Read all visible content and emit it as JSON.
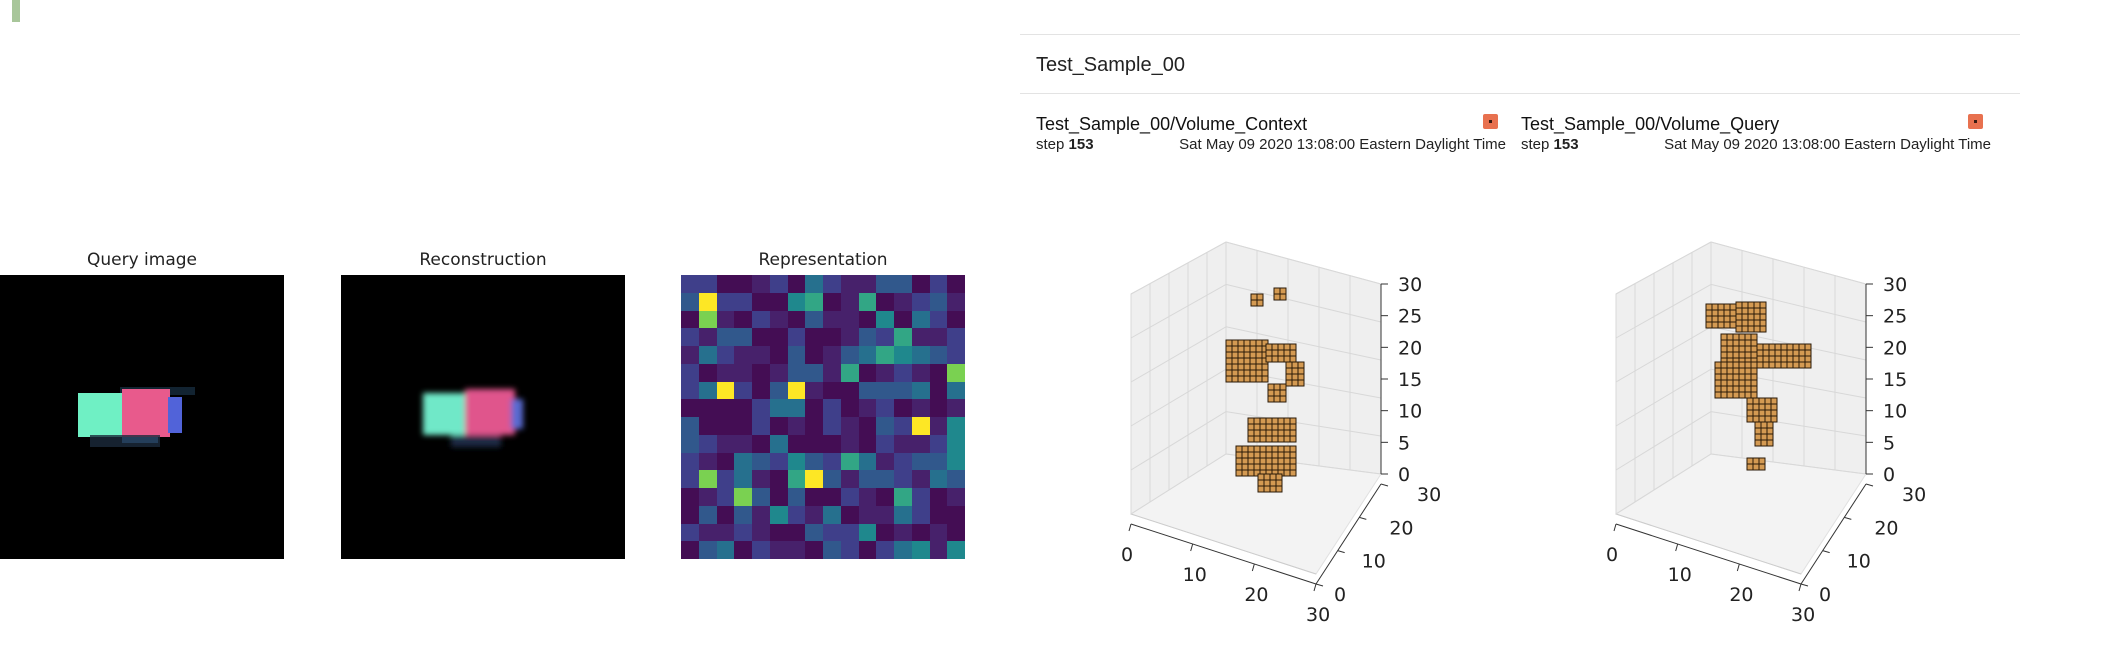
{
  "figure": {
    "panels": [
      {
        "title": "Query image",
        "icon": "query-image"
      },
      {
        "title": "Reconstruction",
        "icon": "reconstruction-image"
      },
      {
        "title": "Representation",
        "icon": "representation-heatmap"
      }
    ]
  },
  "tensorboard": {
    "group_title": "Test_Sample_00",
    "cards": [
      {
        "tag": "Test_Sample_00/Volume_Context",
        "step_label": "step",
        "step_value": "153",
        "timestamp": "Sat May 09 2020 13:08:00 Eastern Daylight Time",
        "axes": {
          "z_ticks": [
            "0",
            "5",
            "10",
            "15",
            "20",
            "25",
            "30"
          ],
          "x_ticks": [
            "0",
            "10",
            "20",
            "30"
          ],
          "y_ticks": [
            "0",
            "10",
            "20",
            "30"
          ]
        }
      },
      {
        "tag": "Test_Sample_00/Volume_Query",
        "step_label": "step",
        "step_value": "153",
        "timestamp": "Sat May 09 2020 13:08:00 Eastern Daylight Time",
        "axes": {
          "z_ticks": [
            "0",
            "5",
            "10",
            "15",
            "20",
            "25",
            "30"
          ],
          "x_ticks": [
            "0",
            "10",
            "20",
            "30"
          ],
          "y_ticks": [
            "0",
            "10",
            "20",
            "30"
          ]
        }
      }
    ]
  },
  "colors": {
    "accent_bar": "#a8c69a",
    "expand_icon": "#e8714f",
    "voxel": "#d49a52",
    "voxel_edge": "#2a1a08",
    "pane": "#eeeeee"
  }
}
